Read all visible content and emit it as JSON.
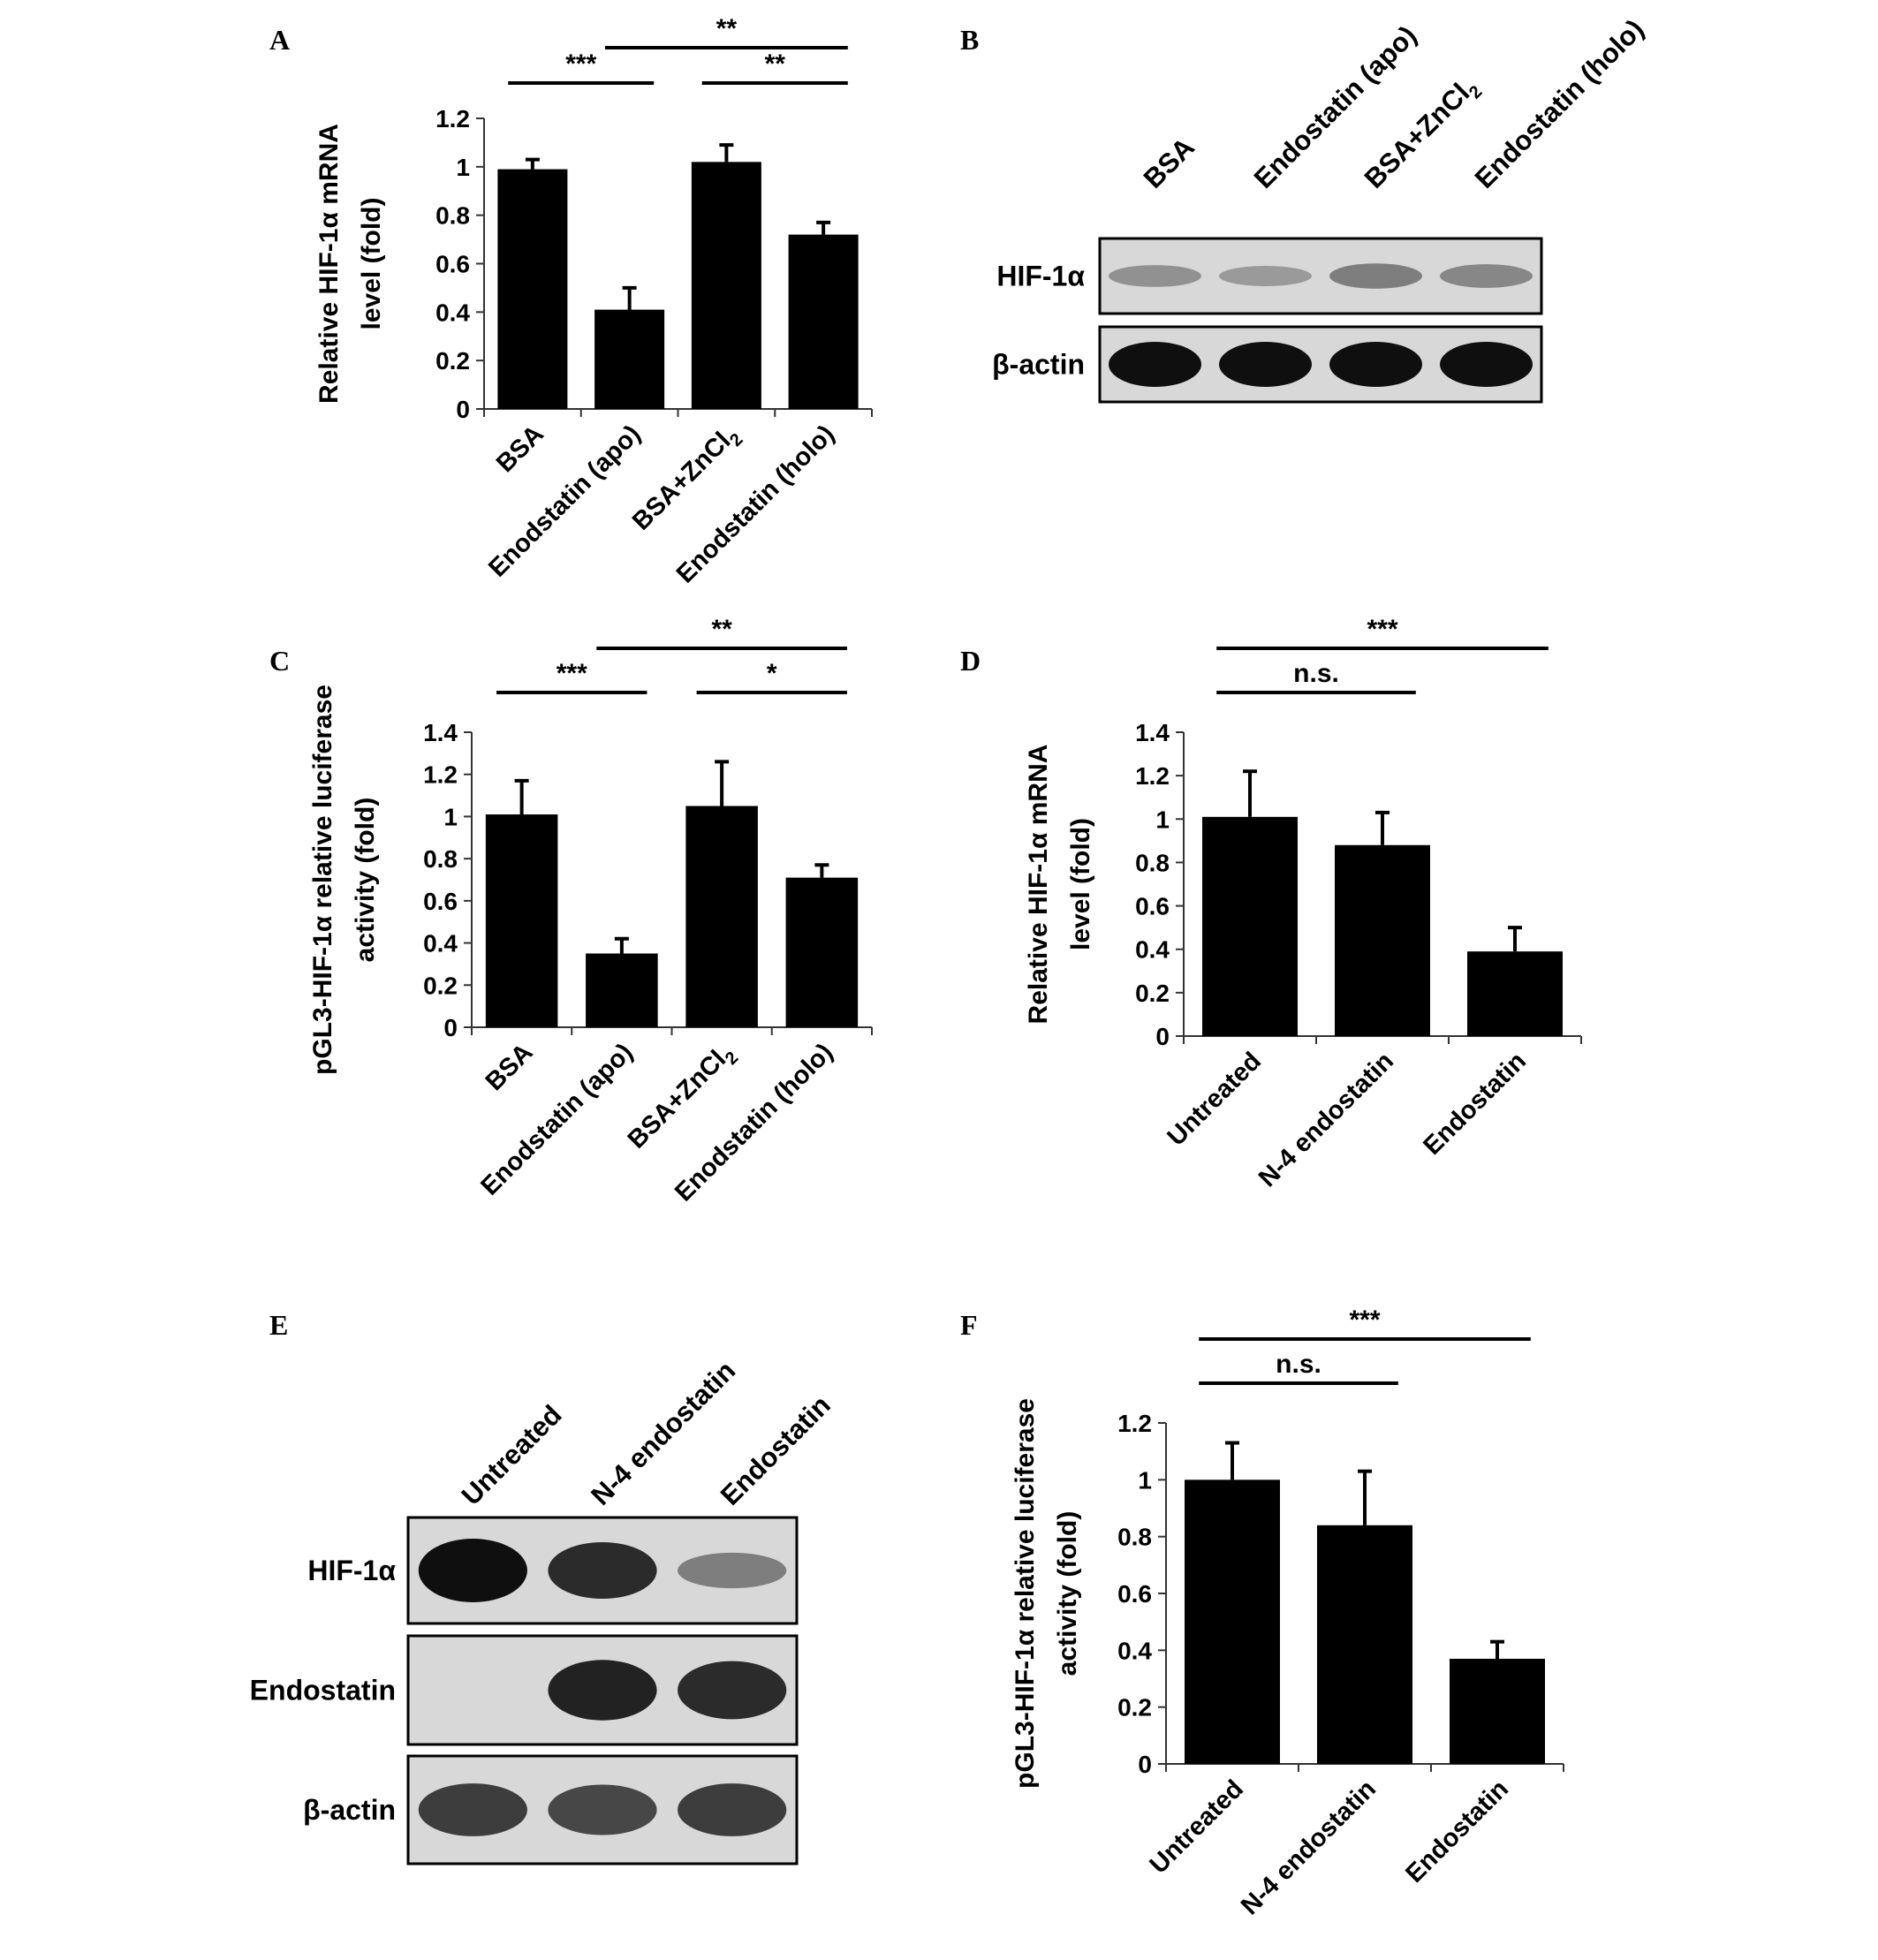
{
  "panel_labels": {
    "A": "A",
    "B": "B",
    "C": "C",
    "D": "D",
    "E": "E",
    "F": "F"
  },
  "chart_data": [
    {
      "id": "A",
      "type": "bar",
      "categories": [
        "BSA",
        "Enodstatin (apo)",
        "BSA+ZnCl2",
        "Enodstatin (holo)"
      ],
      "category_labels": [
        [
          "BSA"
        ],
        [
          "Enodstatin (apo)"
        ],
        [
          "BSA+ZnCl",
          "2"
        ],
        [
          "Enodstatin (holo)"
        ]
      ],
      "values": [
        0.99,
        0.41,
        1.02,
        0.72
      ],
      "errors": [
        0.04,
        0.09,
        0.07,
        0.05
      ],
      "ylabel_lines": [
        "Relative HIF-1α mRNA",
        "level (fold)"
      ],
      "ylim": [
        0,
        1.2
      ],
      "yticks": [
        "0",
        "0.2",
        "0.4",
        "0.6",
        "0.8",
        "1",
        "1.2"
      ],
      "significance": [
        {
          "from": 0,
          "to": 1,
          "label": "***"
        },
        {
          "from": 1,
          "to": 3,
          "label": "**"
        },
        {
          "from": 2,
          "to": 3,
          "label": "**"
        }
      ]
    },
    {
      "id": "C",
      "type": "bar",
      "categories": [
        "BSA",
        "Enodstatin (apo)",
        "BSA+ZnCl2",
        "Enodstatin (holo)"
      ],
      "category_labels": [
        [
          "BSA"
        ],
        [
          "Enodstatin (apo)"
        ],
        [
          "BSA+ZnCl",
          "2"
        ],
        [
          "Enodstatin (holo)"
        ]
      ],
      "values": [
        1.01,
        0.35,
        1.05,
        0.71
      ],
      "errors": [
        0.16,
        0.07,
        0.21,
        0.06
      ],
      "ylabel_lines": [
        "pGL3-HIF-1α relative luciferase",
        "activity (fold)"
      ],
      "ylim": [
        0,
        1.4
      ],
      "yticks": [
        "0",
        "0.2",
        "0.4",
        "0.6",
        "0.8",
        "1",
        "1.2",
        "1.4"
      ],
      "significance": [
        {
          "from": 0,
          "to": 1,
          "label": "***"
        },
        {
          "from": 1,
          "to": 3,
          "label": "**"
        },
        {
          "from": 2,
          "to": 3,
          "label": "*"
        }
      ]
    },
    {
      "id": "D",
      "type": "bar",
      "categories": [
        "Untreated",
        "N-4 endostatin",
        "Endostatin"
      ],
      "category_labels": [
        [
          "Untreated"
        ],
        [
          "N-4 endostatin"
        ],
        [
          "Endostatin"
        ]
      ],
      "values": [
        1.01,
        0.88,
        0.39
      ],
      "errors": [
        0.21,
        0.15,
        0.11
      ],
      "ylabel_lines": [
        "Relative HIF-1α mRNA",
        "level (fold)"
      ],
      "ylim": [
        0,
        1.4
      ],
      "yticks": [
        "0",
        "0.2",
        "0.4",
        "0.6",
        "0.8",
        "1",
        "1.2",
        "1.4"
      ],
      "significance": [
        {
          "from": 0,
          "to": 1,
          "label": "n.s."
        },
        {
          "from": 0,
          "to": 2,
          "label": "***"
        }
      ]
    },
    {
      "id": "F",
      "type": "bar",
      "categories": [
        "Untreated",
        "N-4 endostatin",
        "Endostatin"
      ],
      "category_labels": [
        [
          "Untreated"
        ],
        [
          "N-4 endostatin"
        ],
        [
          "Endostatin"
        ]
      ],
      "values": [
        1.0,
        0.84,
        0.37
      ],
      "errors": [
        0.13,
        0.19,
        0.06
      ],
      "ylabel_lines": [
        "pGL3-HIF-1α relative luciferase",
        "activity (fold)"
      ],
      "ylim": [
        0,
        1.2
      ],
      "yticks": [
        "0",
        "0.2",
        "0.4",
        "0.6",
        "0.8",
        "1",
        "1.2"
      ],
      "significance": [
        {
          "from": 0,
          "to": 1,
          "label": "n.s."
        },
        {
          "from": 0,
          "to": 2,
          "label": "***"
        }
      ]
    }
  ],
  "blots": [
    {
      "id": "B",
      "lanes": [
        [
          "BSA"
        ],
        [
          "Endostatin (apo)"
        ],
        [
          "BSA+ZnCl",
          "2"
        ],
        [
          "Endostatin (holo)"
        ]
      ],
      "rows": [
        {
          "label": "HIF-1α",
          "intensity": [
            0.3,
            0.25,
            0.4,
            0.35
          ]
        },
        {
          "label": "β-actin",
          "intensity": [
            1.0,
            1.0,
            1.0,
            1.0
          ]
        }
      ]
    },
    {
      "id": "E",
      "lanes": [
        [
          "Untreated"
        ],
        [
          "N-4 endostatin"
        ],
        [
          "Endostatin"
        ]
      ],
      "rows": [
        {
          "label": "HIF-1α",
          "intensity": [
            1.0,
            0.85,
            0.4
          ]
        },
        {
          "label": "Endostatin",
          "intensity": [
            0.0,
            0.9,
            0.85
          ]
        },
        {
          "label": "β-actin",
          "intensity": [
            0.75,
            0.7,
            0.75
          ]
        }
      ]
    }
  ]
}
